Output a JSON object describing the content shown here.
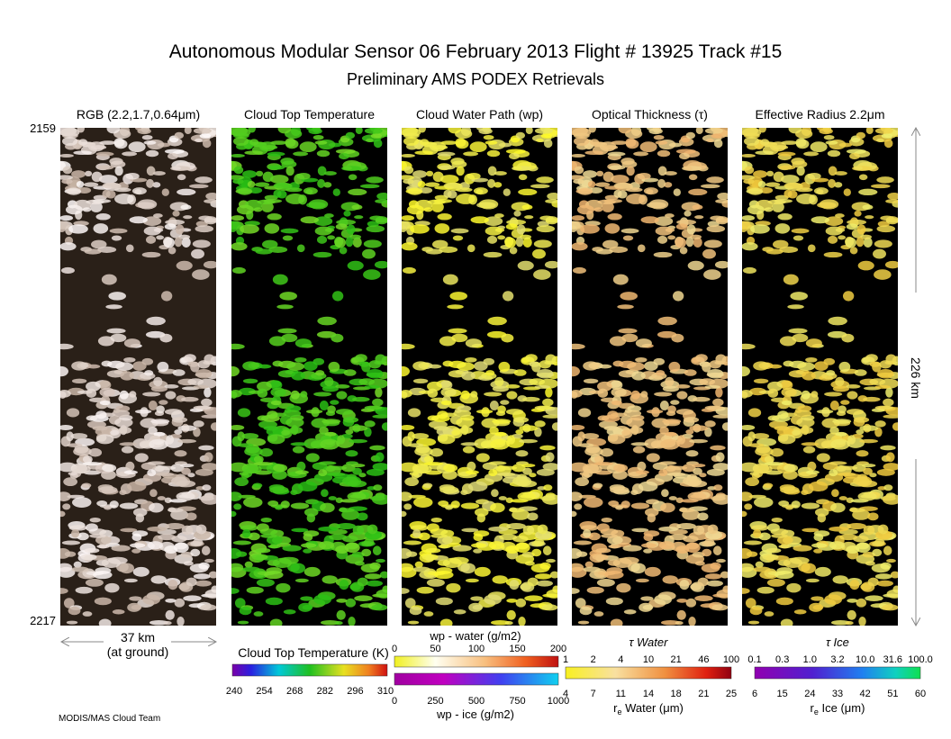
{
  "title": "Autonomous Modular Sensor  06 February 2013  Flight # 13925 Track #15",
  "subtitle": "Preliminary AMS PODEX Retrievals",
  "panels": [
    {
      "title": "RGB (2.2,1.7,0.64μm)"
    },
    {
      "title": "Cloud Top Temperature"
    },
    {
      "title": "Cloud Water Path (wp)"
    },
    {
      "title": "Optical Thickness (τ)"
    },
    {
      "title": "Effective Radius 2.2μm"
    }
  ],
  "scanline_top": "2159",
  "scanline_bottom": "2217",
  "along_track": "226 km",
  "cross_track": [
    "37 km",
    "(at ground)"
  ],
  "colorbars": {
    "ctt": {
      "title": "Cloud Top Temperature (K)",
      "ticks": [
        "240",
        "254",
        "268",
        "282",
        "296",
        "310"
      ]
    },
    "wp_water": {
      "title": "wp - water (g/m2)",
      "ticks": [
        "0",
        "50",
        "100",
        "150",
        "200"
      ]
    },
    "wp_ice": {
      "title": "wp - ice (g/m2)",
      "ticks": [
        "0",
        "250",
        "500",
        "750",
        "1000"
      ]
    },
    "tau_water": {
      "title": "τ Water",
      "ticks": [
        "1",
        "2",
        "4",
        "10",
        "21",
        "46",
        "100"
      ],
      "re_title": {
        "symbol": "r",
        "subscript": "e",
        "text": " Water (μm)"
      },
      "re_ticks": [
        "4",
        "7",
        "11",
        "14",
        "18",
        "21",
        "25"
      ]
    },
    "tau_ice": {
      "title": "τ Ice",
      "ticks": [
        "0.1",
        "0.3",
        "1.0",
        "3.2",
        "10.0",
        "31.6",
        "100.0"
      ],
      "re_title": {
        "symbol": "r",
        "subscript": "e",
        "text": " Ice (μm)"
      },
      "re_ticks": [
        "6",
        "15",
        "24",
        "33",
        "42",
        "51",
        "60"
      ]
    }
  },
  "footer": "MODIS/MAS Cloud Team"
}
